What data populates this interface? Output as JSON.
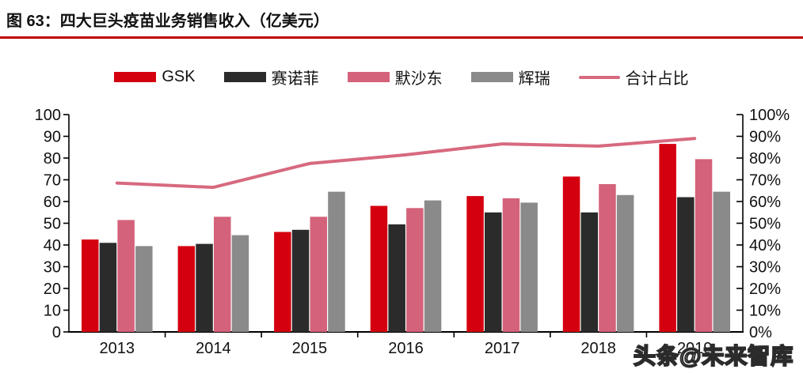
{
  "figure": {
    "title": "图 63：四大巨头疫苗业务销售收入（亿美元）",
    "accent_color": "#C00000"
  },
  "watermark": {
    "text": "头条@未来智库"
  },
  "chart_data": {
    "type": "bar",
    "combo": "grouped bars on left axis + line on right percent axis",
    "title": "四大巨头疫苗业务销售收入（亿美元）",
    "categories": [
      "2013",
      "2014",
      "2015",
      "2016",
      "2017",
      "2018",
      "2019"
    ],
    "series": [
      {
        "name": "GSK",
        "type": "bar",
        "axis": "left",
        "color": "#D5000F",
        "values": [
          42.5,
          39.5,
          46,
          58,
          62.5,
          71.5,
          86.5
        ]
      },
      {
        "name": "赛诺菲",
        "type": "bar",
        "axis": "left",
        "color": "#2B2B2B",
        "values": [
          41,
          40.5,
          47,
          49.5,
          55,
          55,
          62
        ]
      },
      {
        "name": "默沙东",
        "type": "bar",
        "axis": "left",
        "color": "#D4627A",
        "values": [
          51.5,
          53,
          53,
          57,
          61.5,
          68,
          79.5
        ]
      },
      {
        "name": "辉瑞",
        "type": "bar",
        "axis": "left",
        "color": "#8A8A8A",
        "values": [
          39.5,
          44.5,
          64.5,
          60.5,
          59.5,
          63,
          64.5
        ]
      },
      {
        "name": "合计占比",
        "type": "line",
        "axis": "right",
        "color": "#D7697F",
        "values": [
          68.5,
          66.5,
          77.5,
          81.5,
          86.5,
          85.5,
          89
        ]
      }
    ],
    "left_axis": {
      "min": 0,
      "max": 100,
      "step": 10,
      "tick_labels": [
        "0",
        "10",
        "20",
        "30",
        "40",
        "50",
        "60",
        "70",
        "80",
        "90",
        "100"
      ]
    },
    "right_axis": {
      "min": 0,
      "max": 100,
      "step": 10,
      "unit": "%",
      "tick_labels": [
        "0%",
        "10%",
        "20%",
        "30%",
        "40%",
        "50%",
        "60%",
        "70%",
        "80%",
        "90%",
        "100%"
      ]
    },
    "grid": false,
    "legend_position": "top-center"
  }
}
